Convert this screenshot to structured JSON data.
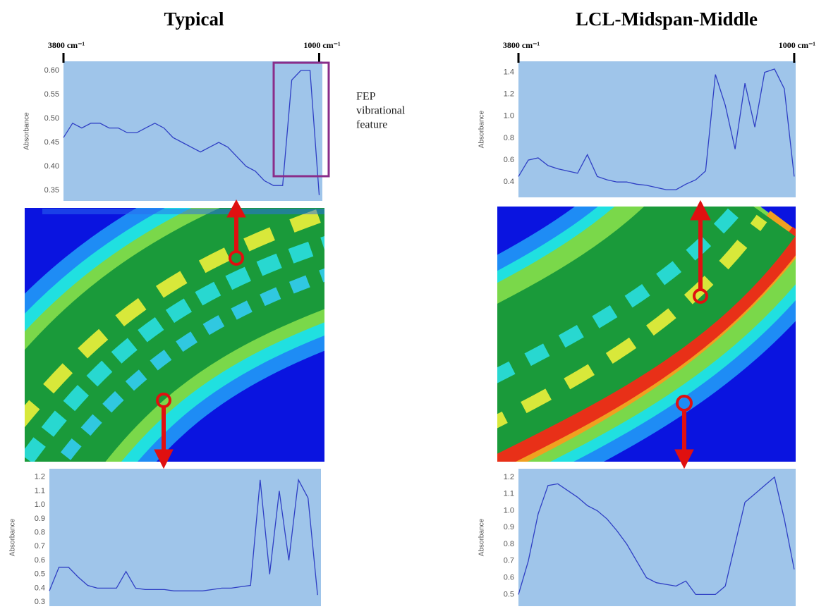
{
  "chart_data": [
    {
      "type": "line",
      "title": "Typical",
      "ylabel": "Absorbance",
      "background": "#9fc5ea",
      "xlim": [
        3800,
        965
      ],
      "ylim": [
        0.328,
        0.619
      ],
      "xticks": [
        {
          "value": 3800,
          "label": "3800 cm⁻¹"
        },
        {
          "value": 1000,
          "label": "1000 cm⁻¹"
        }
      ],
      "yticks": [
        0.35,
        {
          "value": 0.4,
          "label": "0.40"
        },
        0.45,
        {
          "value": 0.5,
          "label": "0.50"
        },
        0.55,
        {
          "value": 0.6,
          "label": "0.60"
        }
      ],
      "annotation": [
        "FEP",
        "vibrational",
        "feature"
      ],
      "highlight_color": "#8a2d8a",
      "x": [
        3800,
        3700,
        3600,
        3500,
        3400,
        3300,
        3200,
        3100,
        3000,
        2900,
        2800,
        2700,
        2600,
        2500,
        2400,
        2300,
        2200,
        2100,
        2000,
        1900,
        1800,
        1700,
        1600,
        1500,
        1400,
        1300,
        1200,
        1100,
        1000
      ],
      "series": [
        {
          "color": "#2f3fc4",
          "values": [
            0.46,
            0.49,
            0.48,
            0.49,
            0.49,
            0.48,
            0.48,
            0.47,
            0.47,
            0.48,
            0.49,
            0.48,
            0.46,
            0.45,
            0.44,
            0.43,
            0.44,
            0.45,
            0.44,
            0.42,
            0.4,
            0.39,
            0.37,
            0.36,
            0.36,
            0.58,
            0.6,
            0.6,
            0.34
          ]
        }
      ]
    },
    {
      "type": "line",
      "ylabel": "Absorbance",
      "background": "#9fc5ea",
      "xlim": [
        3800,
        965
      ],
      "ylim": [
        0.27,
        1.26
      ],
      "yticks": [
        0.3,
        0.4,
        0.5,
        0.6,
        0.7,
        0.8,
        0.9,
        {
          "value": 1,
          "label": "1.0"
        },
        1.1,
        1.2
      ],
      "x": [
        3800,
        3700,
        3600,
        3500,
        3400,
        3300,
        3200,
        3100,
        3000,
        2900,
        2800,
        2700,
        2600,
        2500,
        2400,
        2300,
        2200,
        2100,
        2000,
        1900,
        1800,
        1700,
        1600,
        1500,
        1400,
        1300,
        1200,
        1100,
        1000
      ],
      "series": [
        {
          "color": "#2f3fc4",
          "values": [
            0.38,
            0.55,
            0.55,
            0.48,
            0.42,
            0.4,
            0.4,
            0.4,
            0.52,
            0.4,
            0.39,
            0.39,
            0.39,
            0.38,
            0.38,
            0.38,
            0.38,
            0.39,
            0.4,
            0.4,
            0.41,
            0.42,
            1.18,
            0.5,
            1.1,
            0.6,
            1.18,
            1.05,
            0.35
          ]
        }
      ]
    },
    {
      "type": "line",
      "title": "LCL-Midspan-Middle",
      "ylabel": "Absorbance",
      "background": "#9fc5ea",
      "xlim": [
        3800,
        985
      ],
      "ylim": [
        0.26,
        1.5
      ],
      "xticks": [
        {
          "value": 3800,
          "label": "3800 cm⁻¹"
        },
        {
          "value": 1000,
          "label": "1000 cm⁻¹"
        }
      ],
      "yticks": [
        0.4,
        0.6,
        0.8,
        {
          "value": 1,
          "label": "1.0"
        },
        1.2,
        1.4
      ],
      "x": [
        3800,
        3700,
        3600,
        3500,
        3400,
        3300,
        3200,
        3100,
        3000,
        2900,
        2800,
        2700,
        2600,
        2500,
        2400,
        2300,
        2200,
        2100,
        2000,
        1900,
        1800,
        1700,
        1600,
        1500,
        1400,
        1300,
        1200,
        1100,
        1000
      ],
      "series": [
        {
          "color": "#2f3fc4",
          "values": [
            0.45,
            0.6,
            0.62,
            0.55,
            0.52,
            0.5,
            0.48,
            0.65,
            0.45,
            0.42,
            0.4,
            0.4,
            0.38,
            0.37,
            0.35,
            0.33,
            0.33,
            0.38,
            0.42,
            0.5,
            1.38,
            1.1,
            0.7,
            1.3,
            0.9,
            1.4,
            1.43,
            1.25,
            0.45
          ]
        }
      ]
    },
    {
      "type": "line",
      "ylabel": "Absorbance",
      "background": "#9fc5ea",
      "xlim": [
        3800,
        985
      ],
      "ylim": [
        0.43,
        1.25
      ],
      "yticks": [
        0.5,
        0.6,
        0.7,
        0.8,
        0.9,
        {
          "value": 1,
          "label": "1.0"
        },
        1.1,
        1.2
      ],
      "x": [
        3800,
        3700,
        3600,
        3500,
        3400,
        3300,
        3200,
        3100,
        3000,
        2900,
        2800,
        2700,
        2600,
        2500,
        2400,
        2300,
        2200,
        2100,
        2000,
        1900,
        1800,
        1700,
        1600,
        1500,
        1400,
        1300,
        1200,
        1100,
        1000
      ],
      "series": [
        {
          "color": "#2f3fc4",
          "values": [
            0.5,
            0.7,
            0.98,
            1.15,
            1.16,
            1.12,
            1.08,
            1.03,
            1.0,
            0.95,
            0.88,
            0.8,
            0.7,
            0.6,
            0.57,
            0.56,
            0.55,
            0.58,
            0.5,
            0.5,
            0.5,
            0.55,
            0.8,
            1.05,
            1.1,
            1.15,
            1.2,
            0.95,
            0.65
          ]
        }
      ]
    }
  ]
}
